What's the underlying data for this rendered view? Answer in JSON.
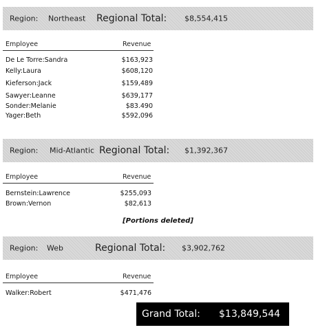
{
  "labels": {
    "region": "Region:",
    "regional_total": "Regional Total:",
    "employee": "Employee",
    "revenue": "Revenue"
  },
  "sections": [
    {
      "region": "Northeast",
      "total": "$8,554,415",
      "rows": [
        {
          "name": "De Le Torre:Sandra",
          "revenue": "$163,923"
        },
        {
          "name": "Kelly:Laura",
          "revenue": "$608,120"
        },
        {
          "name": "Kieferson:Jack",
          "revenue": "$159,489"
        },
        {
          "name": "Sawyer:Leanne",
          "revenue": "$639,177"
        },
        {
          "name": "Sonder:Melanie",
          "revenue": "$83.490"
        },
        {
          "name": "Yager:Beth",
          "revenue": "$592,096"
        }
      ]
    },
    {
      "region": "Mid-Atlantic",
      "total": "$1,392,367",
      "rows": [
        {
          "name": "Bernstein:Lawrence",
          "revenue": "$255,093"
        },
        {
          "name": "Brown:Vernon",
          "revenue": "$82,613"
        }
      ]
    },
    {
      "region": "Web",
      "total": "$3,902,762",
      "rows": [
        {
          "name": "Walker:Robert",
          "revenue": "$471,476"
        }
      ]
    }
  ],
  "note": "[Portions deleted]",
  "grand_total": {
    "label": "Grand Total:",
    "value": "$13,849,544"
  }
}
